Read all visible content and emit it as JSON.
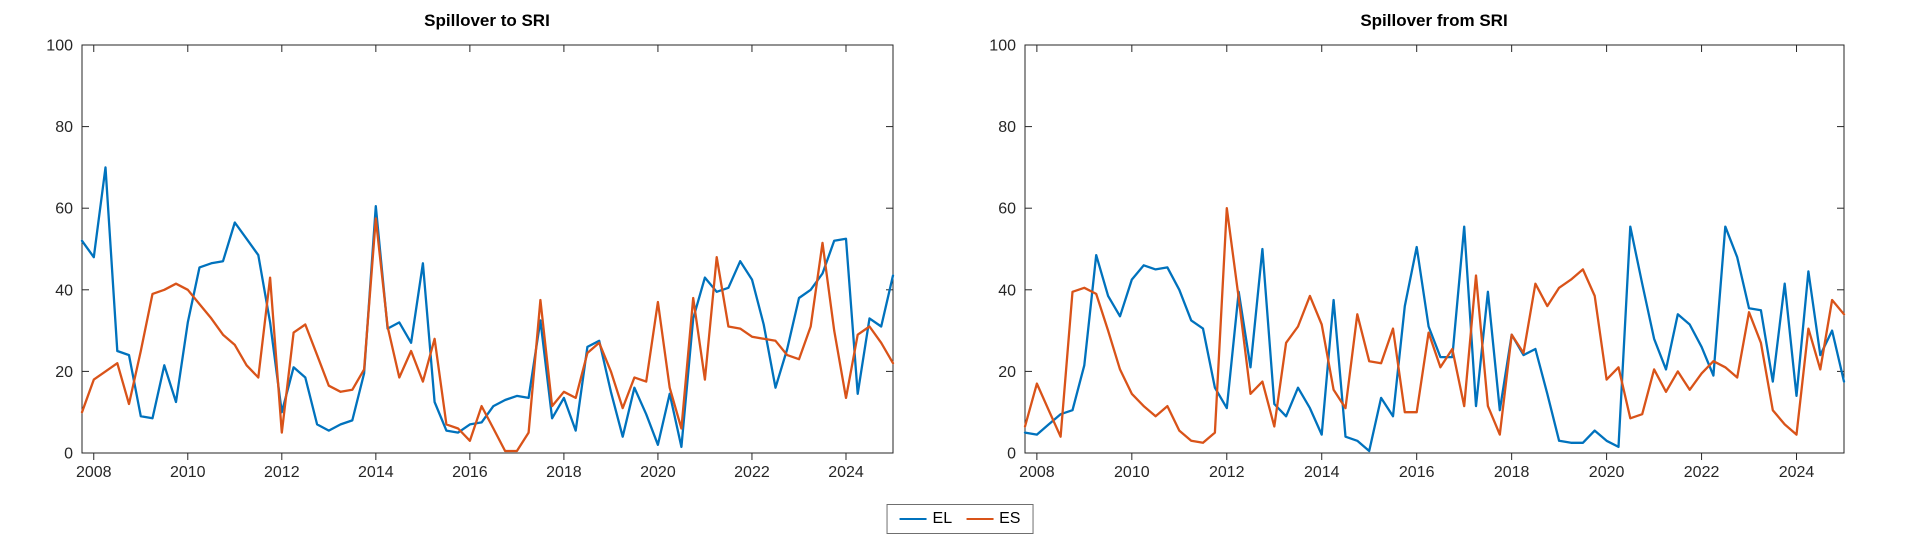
{
  "figure": {
    "background": "#ffffff"
  },
  "colors": {
    "el": "#0072BD",
    "es": "#D95319",
    "axis": "#262626"
  },
  "legend": {
    "position": "bottom-center",
    "items": [
      {
        "label": "EL",
        "color": "#0072BD"
      },
      {
        "label": "ES",
        "color": "#D95319"
      }
    ]
  },
  "chart_data": [
    {
      "type": "line",
      "title": "Spillover to SRI",
      "xlabel": "",
      "ylabel": "",
      "x_start": 2007.75,
      "x_step": 0.25,
      "xlim": [
        2007.75,
        2025.0
      ],
      "ylim": [
        0,
        100
      ],
      "x_ticks": [
        2008,
        2010,
        2012,
        2014,
        2016,
        2018,
        2020,
        2022,
        2024
      ],
      "y_ticks": [
        0,
        20,
        40,
        60,
        80,
        100
      ],
      "grid": false,
      "series": [
        {
          "name": "EL",
          "color": "#0072BD",
          "values": [
            52,
            48,
            70,
            25,
            24,
            9,
            8.5,
            21.5,
            12.5,
            32,
            45.5,
            46.5,
            47,
            56.5,
            52.5,
            48.5,
            32,
            10,
            21,
            18.5,
            7,
            5.5,
            7,
            8,
            19.5,
            60.5,
            30.5,
            32,
            27,
            46.5,
            12.5,
            5.5,
            5,
            7,
            7.5,
            11.5,
            13,
            14,
            13.5,
            32.5,
            8.5,
            13.5,
            5.5,
            26,
            27.5,
            15,
            4,
            16,
            9.5,
            2,
            14.5,
            1.5,
            33,
            43,
            39.5,
            40.5,
            47,
            42.5,
            31.5,
            16,
            25.5,
            38,
            40,
            44,
            52,
            52.5,
            14.5,
            33,
            31,
            43.5
          ]
        },
        {
          "name": "ES",
          "color": "#D95319",
          "values": [
            10,
            18,
            20,
            22,
            12,
            25,
            39,
            40,
            41.5,
            40,
            36.5,
            33,
            29,
            26.5,
            21.5,
            18.5,
            43,
            5,
            29.5,
            31.5,
            24,
            16.5,
            15,
            15.5,
            20.5,
            57.5,
            31,
            18.5,
            25,
            17.5,
            28,
            7,
            6,
            3,
            11.5,
            6,
            0.5,
            0.5,
            5,
            37.5,
            11.5,
            15,
            13.5,
            24.5,
            27,
            20,
            11,
            18.5,
            17.5,
            37,
            16,
            6,
            38,
            18,
            48,
            31,
            30.5,
            28.5,
            28,
            27.5,
            24,
            23,
            31,
            51.5,
            30,
            13.5,
            29,
            31,
            27,
            22
          ]
        }
      ]
    },
    {
      "type": "line",
      "title": "Spillover from SRI",
      "xlabel": "",
      "ylabel": "",
      "x_start": 2007.75,
      "x_step": 0.25,
      "xlim": [
        2007.75,
        2025.0
      ],
      "ylim": [
        0,
        100
      ],
      "x_ticks": [
        2008,
        2010,
        2012,
        2014,
        2016,
        2018,
        2020,
        2022,
        2024
      ],
      "y_ticks": [
        0,
        20,
        40,
        60,
        80,
        100
      ],
      "grid": false,
      "series": [
        {
          "name": "EL",
          "color": "#0072BD",
          "values": [
            5,
            4.5,
            7,
            9.5,
            10.5,
            21.5,
            48.5,
            38.5,
            33.5,
            42.5,
            46,
            45,
            45.5,
            40,
            32.5,
            30.5,
            16,
            11,
            39.5,
            21,
            50,
            12,
            9,
            16,
            11,
            4.5,
            37.5,
            4,
            3,
            0.5,
            13.5,
            9,
            36,
            50.5,
            31,
            23.5,
            23.5,
            55.5,
            11.5,
            39.5,
            10.5,
            29,
            24,
            25.5,
            14.5,
            3,
            2.5,
            2.5,
            5.5,
            3,
            1.5,
            55.5,
            41.5,
            28,
            20.5,
            34,
            31.5,
            26,
            19,
            55.5,
            48,
            35.5,
            35,
            17.5,
            41.5,
            14,
            44.5,
            24,
            30,
            17.5
          ]
        },
        {
          "name": "ES",
          "color": "#D95319",
          "values": [
            6.5,
            17,
            10.5,
            4,
            39.5,
            40.5,
            39,
            30,
            20.5,
            14.5,
            11.5,
            9,
            11.5,
            5.5,
            3,
            2.5,
            5,
            60,
            38,
            14.5,
            17.5,
            6.5,
            27,
            31,
            38.5,
            31.5,
            15.5,
            11,
            34,
            22.5,
            22,
            30.5,
            10,
            10,
            29.5,
            21,
            25.5,
            11.5,
            43.5,
            11.5,
            4.5,
            29,
            24.5,
            41.5,
            36,
            40.5,
            42.5,
            45,
            38.5,
            18,
            21,
            8.5,
            9.5,
            20.5,
            15,
            20,
            15.5,
            19.5,
            22.5,
            21,
            18.5,
            34.5,
            27,
            10.5,
            7,
            4.5,
            30.5,
            20.5,
            37.5,
            34
          ]
        }
      ]
    }
  ]
}
